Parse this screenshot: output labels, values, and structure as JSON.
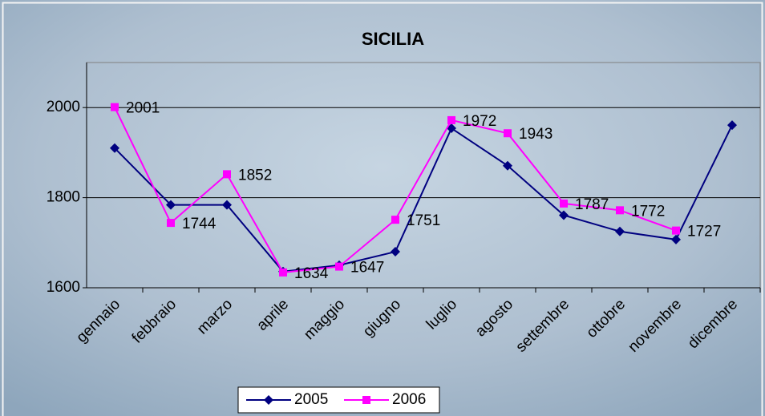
{
  "chart_data": {
    "type": "line",
    "title": "SICILIA",
    "categories": [
      "gennaio",
      "febbraio",
      "marzo",
      "aprile",
      "maggio",
      "giugno",
      "luglio",
      "agosto",
      "settembre",
      "ottobre",
      "novembre",
      "dicembre"
    ],
    "series": [
      {
        "name": "2005",
        "color": "#000080",
        "marker": "diamond",
        "values": [
          1910,
          1784,
          1784,
          1636,
          1650,
          1680,
          1954,
          1871,
          1761,
          1725,
          1707,
          1961
        ]
      },
      {
        "name": "2006",
        "color": "#ff00ff",
        "marker": "square",
        "values": [
          2001,
          1744,
          1852,
          1634,
          1647,
          1751,
          1972,
          1943,
          1787,
          1772,
          1727,
          null
        ],
        "data_labels": true
      }
    ],
    "ylim": [
      1600,
      2100
    ],
    "yticks": [
      1600,
      1800,
      2000
    ],
    "grid": true,
    "legend": "bottom"
  }
}
